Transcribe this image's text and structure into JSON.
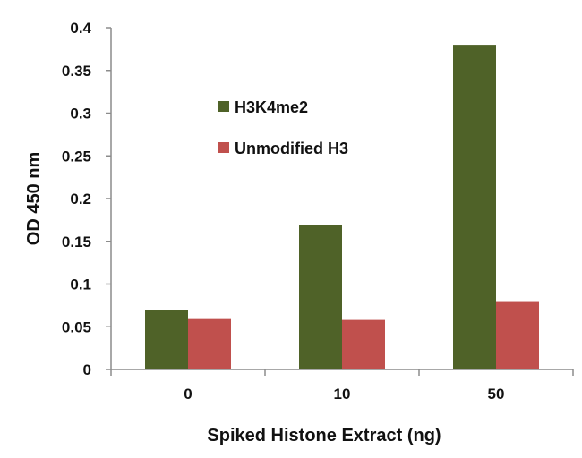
{
  "chart_data": {
    "type": "bar",
    "title": "",
    "xlabel": "Spiked Histone Extract (ng)",
    "ylabel": "OD 450 nm",
    "categories": [
      "0",
      "10",
      "50"
    ],
    "series": [
      {
        "name": "H3K4me2",
        "values": [
          0.07,
          0.169,
          0.38
        ],
        "color": "#4f6228"
      },
      {
        "name": "Unmodified H3",
        "values": [
          0.059,
          0.058,
          0.079
        ],
        "color": "#c0504d"
      }
    ],
    "ylim": [
      0,
      0.4
    ],
    "y_ticks": [
      "0",
      "0.05",
      "0.1",
      "0.15",
      "0.2",
      "0.25",
      "0.3",
      "0.35",
      "0.4"
    ],
    "grid": false,
    "legend_position": "top-left inside plot"
  }
}
